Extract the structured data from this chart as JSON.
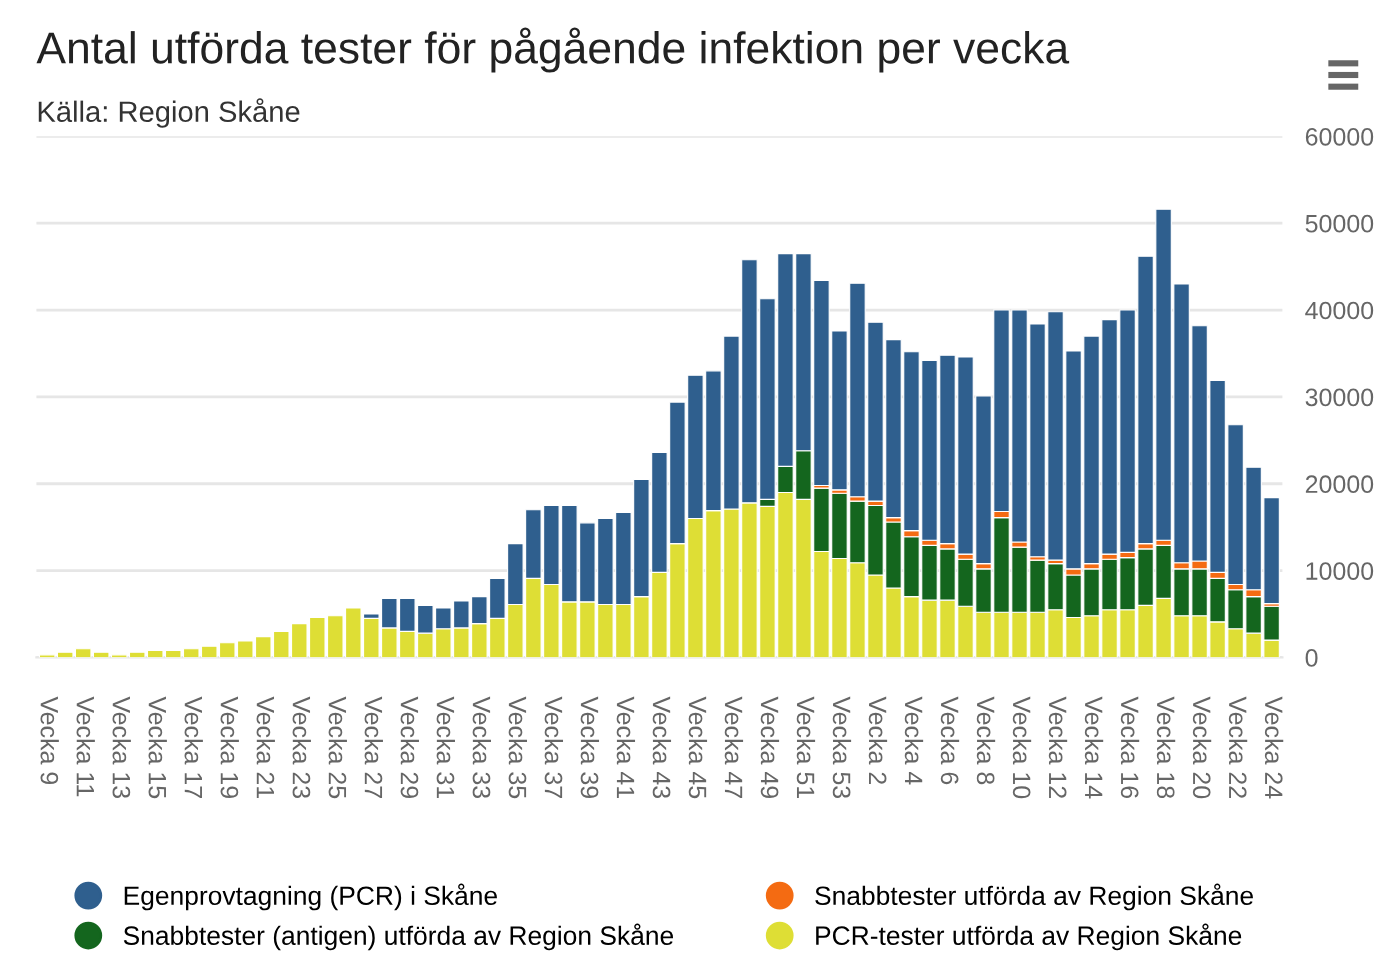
{
  "chart_data": {
    "type": "bar",
    "title": "Antal utförda tester för pågående infektion per vecka",
    "subtitle": "Källa: Region Skåne",
    "categories": [
      "Vecka 9",
      null,
      "Vecka 11",
      null,
      "Vecka 13",
      null,
      "Vecka 15",
      null,
      "Vecka 17",
      null,
      "Vecka 19",
      null,
      "Vecka 21",
      null,
      "Vecka 23",
      null,
      "Vecka 25",
      null,
      "Vecka 27",
      null,
      "Vecka 29",
      null,
      "Vecka 31",
      null,
      "Vecka 33",
      null,
      "Vecka 35",
      null,
      "Vecka 37",
      null,
      "Vecka 39",
      null,
      "Vecka 41",
      null,
      "Vecka 43",
      null,
      "Vecka 45",
      null,
      "Vecka 47",
      null,
      "Vecka 49",
      null,
      "Vecka 51",
      null,
      "Vecka 53",
      null,
      "Vecka 2",
      null,
      "Vecka 4",
      null,
      "Vecka 6",
      null,
      "Vecka 8",
      null,
      "Vecka 10",
      null,
      "Vecka 12",
      null,
      "Vecka 14",
      null,
      "Vecka 16",
      null,
      "Vecka 18",
      null,
      "Vecka 20",
      null,
      "Vecka 22",
      null,
      "Vecka 24"
    ],
    "stacked": true,
    "series": [
      {
        "name": "PCR-tester utförda av Region Skåne",
        "color": "#dede35",
        "values": [
          300,
          600,
          1000,
          600,
          300,
          600,
          800,
          800,
          1000,
          1300,
          1700,
          1900,
          2400,
          3000,
          3900,
          4600,
          4800,
          5700,
          4500,
          3400,
          3000,
          2800,
          3300,
          3400,
          3900,
          4500,
          6100,
          9100,
          8400,
          6400,
          6400,
          6100,
          6100,
          7000,
          9800,
          13100,
          16000,
          16900,
          17100,
          17800,
          17400,
          19000,
          18200,
          12200,
          11400,
          10900,
          9500,
          8000,
          7000,
          6600,
          6600,
          5900,
          5200,
          5200,
          5200,
          5200,
          5500,
          4600,
          4800,
          5500,
          5500,
          6000,
          6800,
          4800,
          4800,
          4100,
          3300,
          2800,
          2000
        ]
      },
      {
        "name": "Snabbtester (antigen) utförda av Region Skåne",
        "color": "#14661e",
        "values": [
          null,
          null,
          null,
          null,
          null,
          null,
          null,
          null,
          null,
          null,
          null,
          null,
          null,
          null,
          null,
          null,
          null,
          null,
          null,
          null,
          null,
          null,
          null,
          null,
          null,
          null,
          null,
          null,
          null,
          null,
          null,
          null,
          null,
          null,
          null,
          null,
          null,
          null,
          null,
          null,
          800,
          3000,
          5600,
          7300,
          7500,
          7100,
          8000,
          7600,
          6900,
          6300,
          5900,
          5400,
          5000,
          10900,
          7500,
          6000,
          5300,
          4900,
          5400,
          5800,
          6000,
          6500,
          6100,
          5400,
          5400,
          5000,
          4500,
          4200,
          3900
        ]
      },
      {
        "name": "Snabbtester utförda av Region Skåne",
        "color": "#f46b12",
        "values": [
          null,
          null,
          null,
          null,
          null,
          null,
          null,
          null,
          null,
          null,
          null,
          null,
          null,
          null,
          null,
          null,
          null,
          null,
          null,
          null,
          null,
          null,
          null,
          null,
          null,
          null,
          null,
          null,
          null,
          null,
          null,
          null,
          null,
          null,
          null,
          null,
          null,
          null,
          null,
          null,
          null,
          null,
          null,
          300,
          400,
          500,
          500,
          500,
          700,
          600,
          600,
          600,
          600,
          700,
          600,
          400,
          400,
          700,
          600,
          600,
          600,
          600,
          600,
          700,
          900,
          700,
          600,
          800,
          300
        ]
      },
      {
        "name": "Egenprovtagning (PCR) i Skåne",
        "color": "#2f5f8e",
        "values": [
          null,
          null,
          null,
          null,
          null,
          null,
          null,
          null,
          null,
          null,
          null,
          null,
          null,
          null,
          null,
          null,
          null,
          null,
          500,
          3400,
          3800,
          3200,
          2400,
          3100,
          3100,
          4600,
          7000,
          7900,
          9100,
          11100,
          9100,
          9900,
          10600,
          13500,
          13800,
          16300,
          16500,
          16100,
          19900,
          28000,
          23100,
          24500,
          22700,
          23600,
          18300,
          24600,
          20600,
          20500,
          20600,
          20700,
          21700,
          22700,
          19300,
          23200,
          26700,
          26800,
          28600,
          25100,
          26200,
          27000,
          27900,
          33100,
          38100,
          32100,
          27100,
          22100,
          18400,
          14100,
          12200
        ]
      }
    ],
    "ylim": [
      0,
      60000
    ],
    "yticks": [
      0,
      10000,
      20000,
      30000,
      40000,
      50000,
      60000
    ],
    "grid": "y",
    "legend": "bottom"
  }
}
